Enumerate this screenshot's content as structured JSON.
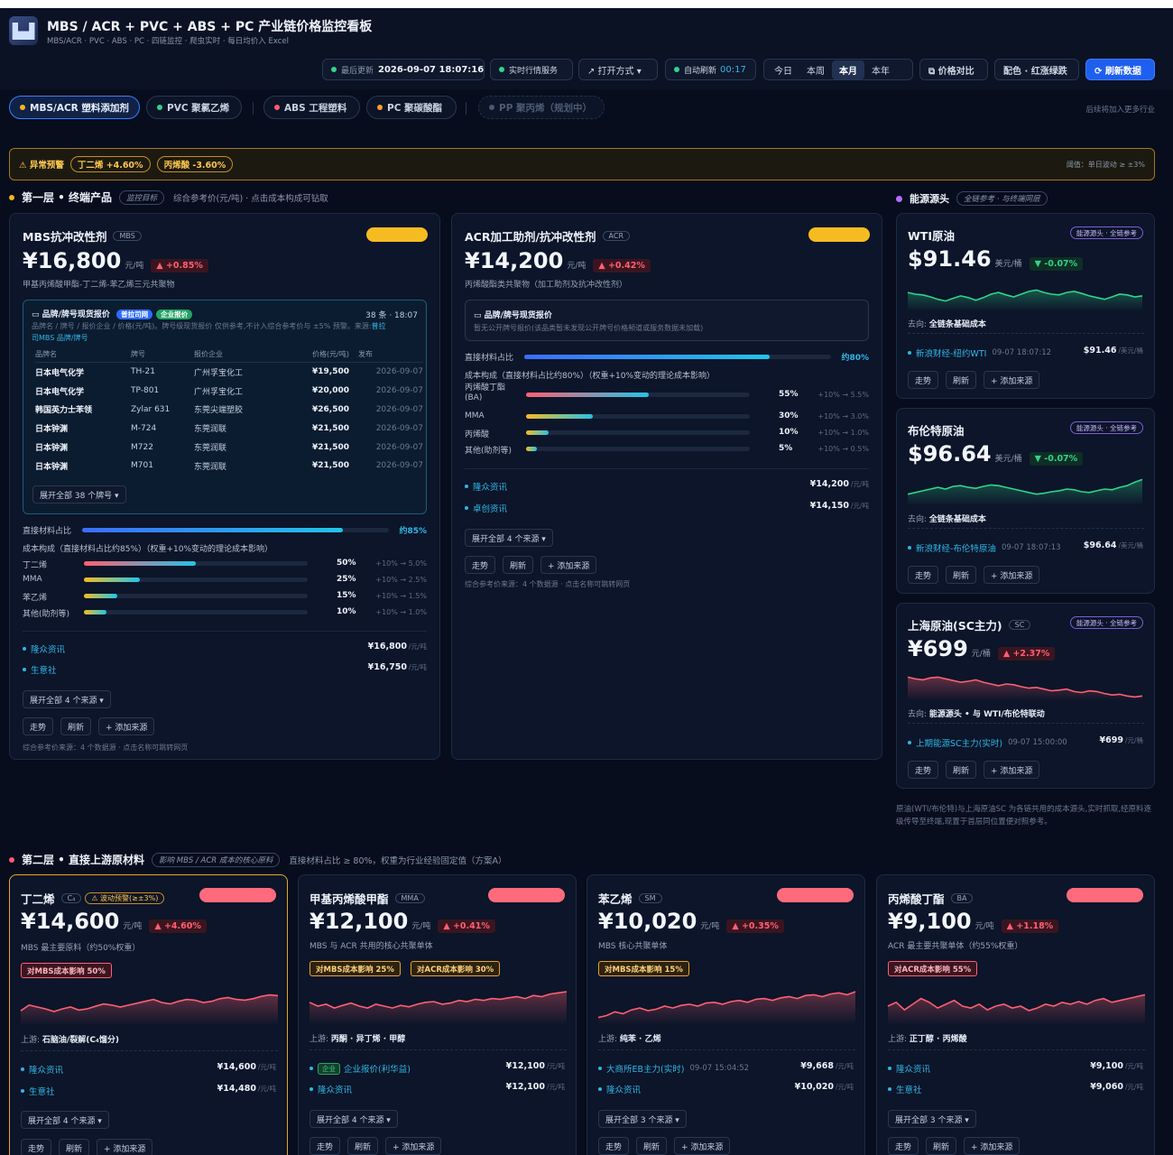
{
  "header": {
    "logo_icon": "factory-icon",
    "title": "MBS / ACR + PVC + ABS + PC 产业链价格监控看板",
    "subtitle": "MBS/ACR · PVC · ABS · PC · 四链监控 · 爬虫实时 · 每日均价入 Excel",
    "last_update_label": "最后更新",
    "last_update": "2026-09-07 18:07:16",
    "realtime": "实时行情服务",
    "open_mode": "↗ 打开方式 ▾",
    "auto_refresh_label": "自动刷新",
    "auto_refresh": "00:17",
    "ranges": [
      "今日",
      "本周",
      "本月",
      "本年"
    ],
    "price_compare": "⧉ 价格对比",
    "color_scheme": "配色 · 红涨绿跌",
    "refresh": "⟳ 刷新数据"
  },
  "tabs": [
    "MBS/ACR 塑料添加剂",
    "PVC 聚氯乙烯",
    "ABS 工程塑料",
    "PC 聚碳酸酯",
    "PP 聚丙烯（规划中）"
  ],
  "tabs_note": "后续将加入更多行业",
  "alert": {
    "label": "⚠ 异常预警",
    "chips": [
      "丁二烯 +4.60%",
      "丙烯酸 -3.60%"
    ],
    "threshold": "阈值：单日波动 ≥ ±3%"
  },
  "layer1": {
    "title": "第一层 • 终端产品",
    "tag": "监控目标",
    "desc": "综合参考价(元/吨) · 点击成本构成可钻取"
  },
  "energy": {
    "title": "能源源头",
    "tag": "全链参考 · 与终端同层"
  },
  "mbs": {
    "name": "MBS抗冲改性剂",
    "code": "MBS",
    "price": "¥16,800",
    "unit": "元/吨",
    "change": "▲ +0.85%",
    "desc": "甲基丙烯酸甲酯-丁二烯-苯乙烯三元共聚物",
    "board_title": "品牌/牌号现货报价",
    "badge1": "普拉司网",
    "badge2": "企业报价",
    "board_count": "38 条 · 18:07",
    "board_note1": "品牌名 / 牌号 / 报价企业 / 价格(元/吨)。牌号级现货报价 仅供参考,不计入综合参考价与 ±5% 预警。来源:",
    "board_link": "普拉",
    "board_note2": "司MBS 品牌/牌号",
    "headers": [
      "品牌名",
      "牌号",
      "报价企业",
      "价格(元/吨)",
      "发布"
    ],
    "rows": [
      [
        "日本电气化学",
        "TH-21",
        "广州孚宝化工",
        "¥19,500",
        "2026-09-07"
      ],
      [
        "日本电气化学",
        "TP-801",
        "广州孚宝化工",
        "¥20,000",
        "2026-09-07"
      ],
      [
        "韩国英力士苯领",
        "Zylar 631",
        "东莞尖端塑胶",
        "¥26,500",
        "2026-09-07"
      ],
      [
        "日本钟渊",
        "M-724",
        "东莞润联",
        "¥21,500",
        "2026-09-07"
      ],
      [
        "日本钟渊",
        "M722",
        "东莞润联",
        "¥21,500",
        "2026-09-07"
      ],
      [
        "日本钟渊",
        "M701",
        "东莞润联",
        "¥21,500",
        "2026-09-07"
      ]
    ],
    "expand_brands": "展开全部 38 个牌号 ▾",
    "share_label": "直接材料占比",
    "share": "约85%",
    "share_pct": 85,
    "cost_title": "成本构成（直接材料占比约85%）（权重+10%变动的理论成本影响）",
    "cost": [
      {
        "name": "丁二烯",
        "pct": "50%",
        "v": 50,
        "eff": "+10% → 5.0%"
      },
      {
        "name": "MMA",
        "pct": "25%",
        "v": 25,
        "eff": "+10% → 2.5%"
      },
      {
        "name": "苯乙烯",
        "pct": "15%",
        "v": 15,
        "eff": "+10% → 1.5%"
      },
      {
        "name": "其他(助剂等)",
        "pct": "10%",
        "v": 10,
        "eff": "+10% → 1.0%"
      }
    ],
    "sources": [
      {
        "name": "隆众资讯",
        "value": "¥16,800",
        "unit": "/元/吨"
      },
      {
        "name": "生意社",
        "value": "¥16,750",
        "unit": "/元/吨"
      }
    ],
    "expand_sources": "展开全部 4 个来源 ▾",
    "btn_trend": "走势",
    "btn_refresh": "刷新",
    "btn_add": "+ 添加来源",
    "footer": "综合参考价来源：4 个数据源 · 点击名称可跳转网页"
  },
  "acr": {
    "name": "ACR加工助剂/抗冲改性剂",
    "code": "ACR",
    "price": "¥14,200",
    "unit": "元/吨",
    "change": "▲ +0.42%",
    "desc": "丙烯酸酯类共聚物（加工助剂及抗冲改性剂）",
    "board_title": "品牌/牌号现货报价",
    "board_note": "暂无公开牌号报价(该品类暂未发现公开牌号价格频道或服务数据未加载)",
    "share_label": "直接材料占比",
    "share": "约80%",
    "share_pct": 80,
    "cost_title": "成本构成（直接材料占比约80%）（权重+10%变动的理论成本影响）",
    "cost": [
      {
        "name": "丙烯酸丁酯(BA)",
        "pct": "55%",
        "v": 55,
        "eff": "+10% → 5.5%"
      },
      {
        "name": "MMA",
        "pct": "30%",
        "v": 30,
        "eff": "+10% → 3.0%"
      },
      {
        "name": "丙烯酸",
        "pct": "10%",
        "v": 10,
        "eff": "+10% → 1.0%"
      },
      {
        "name": "其他(助剂等)",
        "pct": "5%",
        "v": 5,
        "eff": "+10% → 0.5%"
      }
    ],
    "sources": [
      {
        "name": "隆众资讯",
        "value": "¥14,200",
        "unit": "/元/吨"
      },
      {
        "name": "卓创资讯",
        "value": "¥14,150",
        "unit": "/元/吨"
      }
    ],
    "expand_sources": "展开全部 4 个来源 ▾",
    "btn_trend": "走势",
    "btn_refresh": "刷新",
    "btn_add": "+ 添加来源",
    "footer": "综合参考价来源：4 个数据源 · 点击名称可跳转网页"
  },
  "wti": {
    "name": "WTI原油",
    "tag": "能源源头 · 全链参考",
    "price": "$91.46",
    "unit": "美元/桶",
    "change": "▼ -0.07%",
    "flow_label": "去向:",
    "flow": "全链条基础成本",
    "src": "新浪财经-纽约WTI",
    "time": "09-07 18:07:12",
    "value": "$91.46",
    "vunit": "/美元/桶",
    "btn_trend": "走势",
    "btn_refresh": "刷新",
    "btn_add": "+ 添加来源"
  },
  "brent": {
    "name": "布伦特原油",
    "tag": "能源源头 · 全链参考",
    "price": "$96.64",
    "unit": "美元/桶",
    "change": "▼ -0.07%",
    "flow_label": "去向:",
    "flow": "全链条基础成本",
    "src": "新浪财经-布伦特原油",
    "time": "09-07 18:07:13",
    "value": "$96.64",
    "vunit": "/美元/桶",
    "btn_trend": "走势",
    "btn_refresh": "刷新",
    "btn_add": "+ 添加来源"
  },
  "sc": {
    "name": "上海原油(SC主力)",
    "code": "SC",
    "tag": "能源源头 · 全链参考",
    "price": "¥699",
    "unit": "元/桶",
    "change": "▲ +2.37%",
    "flow_label": "去向:",
    "flow": "能源源头 • 与 WTI/布伦特联动",
    "src": "上期能源SC主力(实时)",
    "time": "09-07 15:00:00",
    "value": "¥699",
    "vunit": "/元/桶",
    "btn_trend": "走势",
    "btn_refresh": "刷新",
    "btn_add": "+ 添加来源"
  },
  "energy_note": "原油(WTI/布伦特)与上海原油SC 为各链共用的成本源头,实时抓取,经原料逐级传导至终端,现置于首层同位置便对照参考。",
  "layer2": {
    "title": "第二层 • 直接上游原材料",
    "tag": "影响 MBS / ACR 成本的核心原料",
    "desc": "直接材料占比 ≥ 80%，权重为行业经验固定值（方案A）"
  },
  "bd": {
    "name": "丁二烯",
    "code": "C₄",
    "warn": "⚠ 波动预警(≥±3%)",
    "price": "¥14,600",
    "unit": "元/吨",
    "change": "▲ +4.60%",
    "desc": "MBS 最主要原料（约50%权重）",
    "impacts": [
      "对MBS成本影响 50%"
    ],
    "up_label": "上游:",
    "up": "石脑油/裂解(C₄馏分)",
    "sources": [
      {
        "name": "隆众资讯",
        "value": "¥14,600",
        "unit": "/元/吨"
      },
      {
        "name": "生意社",
        "value": "¥14,480",
        "unit": "/元/吨"
      }
    ],
    "expand": "展开全部 4 个来源 ▾",
    "btn_trend": "走势",
    "btn_refresh": "刷新",
    "btn_add": "+ 添加来源"
  },
  "mma": {
    "name": "甲基丙烯酸甲酯",
    "code": "MMA",
    "price": "¥12,100",
    "unit": "元/吨",
    "change": "▲ +0.41%",
    "desc": "MBS 与 ACR 共用的核心共聚单体",
    "impacts": [
      "对MBS成本影响 25%",
      "对ACR成本影响 30%"
    ],
    "up_label": "上游:",
    "up": "丙酮 · 异丁烯 · 甲醇",
    "src_badge": "企业",
    "sources": [
      {
        "name": "企业报价(利华益)",
        "value": "¥12,100",
        "unit": "/元/吨"
      },
      {
        "name": "隆众资讯",
        "value": "¥12,100",
        "unit": "/元/吨"
      }
    ],
    "expand": "展开全部 4 个来源 ▾",
    "btn_trend": "走势",
    "btn_refresh": "刷新",
    "btn_add": "+ 添加来源"
  },
  "sm": {
    "name": "苯乙烯",
    "code": "SM",
    "price": "¥10,020",
    "unit": "元/吨",
    "change": "▲ +0.35%",
    "desc": "MBS 核心共聚单体",
    "impacts": [
      "对MBS成本影响 15%"
    ],
    "up_label": "上游:",
    "up": "纯苯 · 乙烯",
    "sources": [
      {
        "name": "大商所EB主力(实时)",
        "time": "09-07 15:04:52",
        "value": "¥9,668",
        "unit": "/元/吨"
      },
      {
        "name": "隆众资讯",
        "value": "¥10,020",
        "unit": "/元/吨"
      }
    ],
    "expand": "展开全部 3 个来源 ▾",
    "btn_trend": "走势",
    "btn_refresh": "刷新",
    "btn_add": "+ 添加来源"
  },
  "ba": {
    "name": "丙烯酸丁酯",
    "code": "BA",
    "price": "¥9,100",
    "unit": "元/吨",
    "change": "▲ +1.18%",
    "desc": "ACR 最主要共聚单体（约55%权重）",
    "impacts": [
      "对ACR成本影响 55%"
    ],
    "up_label": "上游:",
    "up": "正丁醇 · 丙烯酸",
    "sources": [
      {
        "name": "隆众资讯",
        "value": "¥9,100",
        "unit": "/元/吨"
      },
      {
        "name": "生意社",
        "value": "¥9,060",
        "unit": "/元/吨"
      }
    ],
    "expand": "展开全部 3 个来源 ▾",
    "btn_trend": "走势",
    "btn_refresh": "刷新",
    "btn_add": "+ 添加来源"
  },
  "sparks": {
    "wti": [
      0.55,
      0.5,
      0.48,
      0.42,
      0.35,
      0.3,
      0.38,
      0.45,
      0.4,
      0.32,
      0.4,
      0.5,
      0.55,
      0.48,
      0.42,
      0.5,
      0.58,
      0.62,
      0.55,
      0.5,
      0.48,
      0.55,
      0.58,
      0.52,
      0.45,
      0.4,
      0.35,
      0.42,
      0.5,
      0.48,
      0.42,
      0.45
    ],
    "brent": [
      0.35,
      0.4,
      0.45,
      0.5,
      0.55,
      0.5,
      0.58,
      0.6,
      0.55,
      0.52,
      0.58,
      0.62,
      0.6,
      0.55,
      0.5,
      0.45,
      0.4,
      0.35,
      0.38,
      0.42,
      0.45,
      0.5,
      0.48,
      0.42,
      0.4,
      0.45,
      0.5,
      0.48,
      0.55,
      0.6,
      0.7,
      0.78
    ],
    "sc": [
      0.7,
      0.65,
      0.62,
      0.68,
      0.7,
      0.65,
      0.6,
      0.55,
      0.58,
      0.62,
      0.55,
      0.5,
      0.45,
      0.5,
      0.48,
      0.42,
      0.38,
      0.4,
      0.35,
      0.3,
      0.32,
      0.35,
      0.28,
      0.25,
      0.3,
      0.28,
      0.22,
      0.18,
      0.2,
      0.15,
      0.12,
      0.15
    ],
    "bd": [
      0.6,
      0.45,
      0.5,
      0.55,
      0.62,
      0.55,
      0.5,
      0.58,
      0.55,
      0.48,
      0.42,
      0.45,
      0.5,
      0.45,
      0.4,
      0.35,
      0.3,
      0.38,
      0.42,
      0.35,
      0.3,
      0.32,
      0.38,
      0.35,
      0.28,
      0.25,
      0.3,
      0.32,
      0.28,
      0.22,
      0.18,
      0.2
    ],
    "mma": [
      0.4,
      0.5,
      0.45,
      0.55,
      0.48,
      0.42,
      0.5,
      0.55,
      0.45,
      0.5,
      0.55,
      0.48,
      0.52,
      0.45,
      0.4,
      0.38,
      0.45,
      0.42,
      0.35,
      0.38,
      0.32,
      0.35,
      0.3,
      0.32,
      0.28,
      0.25,
      0.3,
      0.22,
      0.25,
      0.18,
      0.15,
      0.12
    ],
    "sm": [
      0.8,
      0.75,
      0.65,
      0.7,
      0.6,
      0.55,
      0.62,
      0.58,
      0.5,
      0.55,
      0.48,
      0.45,
      0.5,
      0.42,
      0.4,
      0.45,
      0.38,
      0.35,
      0.4,
      0.32,
      0.3,
      0.35,
      0.28,
      0.25,
      0.3,
      0.22,
      0.2,
      0.25,
      0.18,
      0.15,
      0.2,
      0.12
    ],
    "ba": [
      0.5,
      0.4,
      0.6,
      0.45,
      0.3,
      0.4,
      0.55,
      0.45,
      0.35,
      0.5,
      0.55,
      0.45,
      0.6,
      0.5,
      0.45,
      0.55,
      0.5,
      0.62,
      0.55,
      0.45,
      0.5,
      0.4,
      0.45,
      0.38,
      0.45,
      0.35,
      0.3,
      0.4,
      0.35,
      0.3,
      0.25,
      0.2
    ]
  },
  "colors": {
    "up": "#ff5f72",
    "down": "#2fd58a",
    "accent": "#2fb6e6",
    "warn": "#f5bc22"
  }
}
